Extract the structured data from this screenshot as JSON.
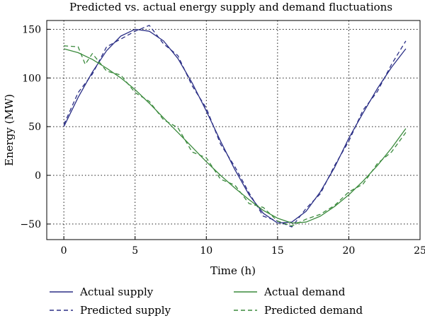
{
  "chart_data": {
    "type": "line",
    "title": "Predicted vs. actual energy supply and demand fluctuations",
    "xlabel": "Time (h)",
    "ylabel": "Energy (MW)",
    "xlim": [
      -1.2,
      25
    ],
    "ylim": [
      -66,
      159
    ],
    "xticks": [
      0,
      5,
      10,
      15,
      20,
      25
    ],
    "yticks": [
      -50,
      0,
      50,
      100,
      150
    ],
    "grid": "dotted",
    "legend_position": "bottom",
    "series": [
      {
        "name": "Actual supply",
        "style": "solid",
        "color": "#2b2f86",
        "x": [
          0,
          1,
          2,
          3,
          4,
          5,
          6,
          7,
          8,
          9,
          10,
          11,
          12,
          13,
          14,
          15,
          16,
          17,
          18,
          19,
          20,
          21,
          22,
          23,
          24
        ],
        "y": [
          50,
          80,
          106,
          128,
          143,
          150,
          148,
          138,
          120,
          95,
          66,
          35,
          6,
          -20,
          -39,
          -49,
          -48,
          -37,
          -17,
          8,
          38,
          64,
          89,
          111,
          130
        ]
      },
      {
        "name": "Predicted supply",
        "style": "dashed",
        "color": "#2b2f86",
        "x": [
          0,
          1,
          2,
          3,
          4,
          5,
          6,
          7,
          8,
          9,
          10,
          11,
          12,
          13,
          14,
          15,
          16,
          17,
          18,
          19,
          20,
          21,
          22,
          23,
          24
        ],
        "y": [
          52,
          85,
          104,
          132,
          140,
          148,
          154,
          135,
          123,
          92,
          69,
          32,
          9,
          -18,
          -42,
          -47,
          -53,
          -34,
          -19,
          10,
          35,
          67,
          86,
          114,
          138
        ]
      },
      {
        "name": "Actual demand",
        "style": "solid",
        "color": "#3a8a3c",
        "x": [
          0,
          1,
          2,
          3,
          4,
          5,
          6,
          7,
          8,
          9,
          10,
          11,
          12,
          13,
          14,
          15,
          16,
          17,
          18,
          19,
          20,
          21,
          22,
          23,
          24
        ],
        "y": [
          130,
          126,
          119,
          110,
          100,
          88,
          74,
          59,
          44,
          29,
          14,
          0,
          -13,
          -25,
          -36,
          -44,
          -49,
          -48,
          -42,
          -32,
          -20,
          -6,
          10,
          28,
          48
        ]
      },
      {
        "name": "Predicted demand",
        "style": "dashed",
        "color": "#3a8a3c",
        "x": [
          0,
          1,
          1.5,
          2,
          3,
          4,
          5,
          6,
          7,
          8,
          9,
          10,
          11,
          12,
          13,
          14,
          15,
          16,
          17,
          18,
          19,
          20,
          21,
          22,
          23,
          24
        ],
        "y": [
          133,
          132,
          114,
          125,
          107,
          103,
          85,
          76,
          57,
          49,
          24,
          18,
          -4,
          -10,
          -29,
          -33,
          -47,
          -52,
          -45,
          -40,
          -31,
          -17,
          -9,
          12,
          24,
          44
        ]
      }
    ]
  }
}
